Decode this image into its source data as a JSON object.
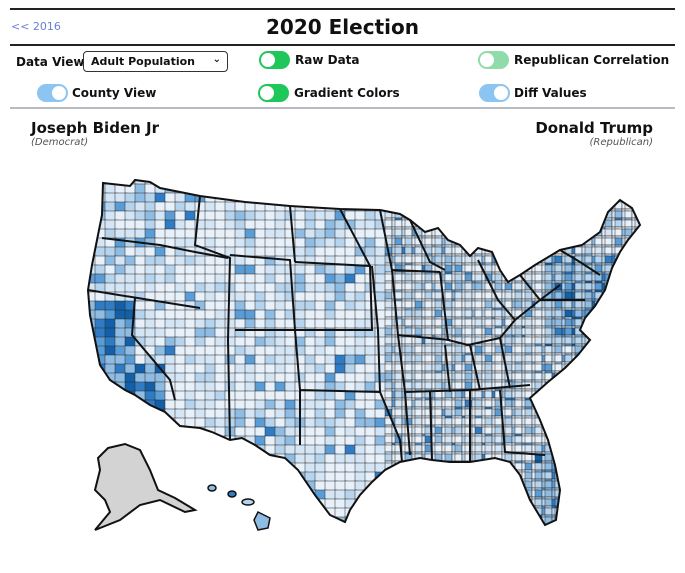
{
  "header": {
    "back_link": "<< 2016",
    "title": "2020 Election"
  },
  "controls": {
    "data_view_label": "Data View:",
    "data_view_selected": "Adult Population",
    "toggles": [
      {
        "label": "Raw Data",
        "state": "on",
        "color": "#1fc65a"
      },
      {
        "label": "Republican Correlation",
        "state": "on",
        "color": "#8fdcaa"
      },
      {
        "label": "County View",
        "state": "on",
        "color": "#8cc5f2"
      },
      {
        "label": "Gradient Colors",
        "state": "on",
        "color": "#1fc65a"
      },
      {
        "label": "Diff Values",
        "state": "on",
        "color": "#8cc5f2"
      }
    ]
  },
  "candidates": {
    "left": {
      "name": "Joseph Biden Jr",
      "party": "(Democrat)"
    },
    "right": {
      "name": "Donald Trump",
      "party": "(Republican)"
    }
  },
  "map": {
    "type": "choropleth",
    "level": "county",
    "palette": [
      "#e8f1fa",
      "#d4e5f5",
      "#b7d4ee",
      "#8fbce3",
      "#5a9dd6",
      "#2f7cc4",
      "#135fa8"
    ],
    "no_data_color": "#d3d3d3",
    "outline_color": "#111111"
  }
}
